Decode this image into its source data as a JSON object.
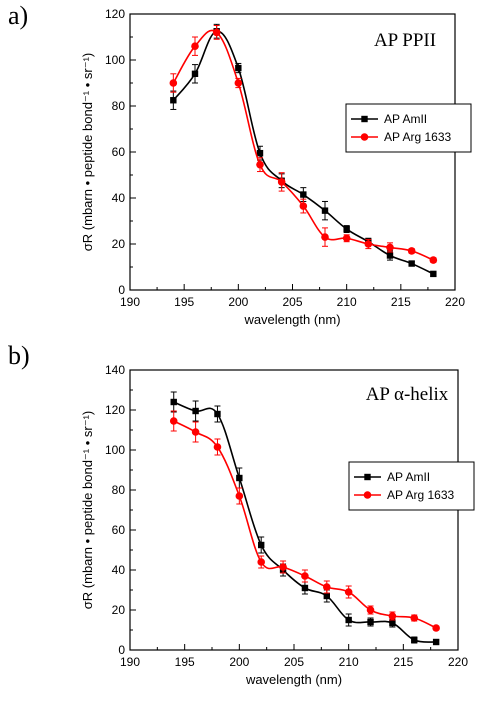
{
  "chart_data": [
    {
      "type": "line",
      "panel_label": "a)",
      "title": "AP PPII",
      "xlabel": "wavelength (nm)",
      "ylabel": "σR (mbarn • peptide bond⁻¹ • sr⁻¹)",
      "xlim": [
        190,
        220
      ],
      "ylim": [
        0,
        120
      ],
      "xticks": [
        190,
        195,
        200,
        205,
        210,
        215,
        220
      ],
      "yticks": [
        0,
        20,
        40,
        60,
        80,
        100,
        120
      ],
      "x": [
        194,
        196,
        198,
        200,
        202,
        204,
        206,
        208,
        210,
        212,
        214,
        216,
        218
      ],
      "legend_position": "center-right",
      "series": [
        {
          "name": "AP AmII",
          "color": "#000000",
          "marker": "square",
          "values": [
            82.5,
            94,
            112.5,
            96.5,
            59.5,
            47.5,
            41.5,
            34.5,
            26.5,
            21,
            15,
            11.5,
            7
          ],
          "errors": [
            4,
            4,
            3,
            2,
            3,
            3,
            3,
            4,
            1.5,
            1.5,
            2,
            1,
            1
          ]
        },
        {
          "name": "AP Arg 1633",
          "color": "#ff0000",
          "marker": "circle",
          "values": [
            90,
            106,
            112,
            90,
            54.5,
            47,
            36.5,
            23,
            22.5,
            20,
            18.5,
            17,
            13
          ],
          "errors": [
            4,
            4,
            3,
            2,
            3,
            4,
            3,
            4,
            1.5,
            2,
            2,
            1,
            1
          ]
        }
      ]
    },
    {
      "type": "line",
      "panel_label": "b)",
      "title": "AP α-helix",
      "xlabel": "wavelength (nm)",
      "ylabel": "σR (mbarn • peptide bond⁻¹ • sr⁻¹)",
      "xlim": [
        190,
        220
      ],
      "ylim": [
        0,
        140
      ],
      "xticks": [
        190,
        195,
        200,
        205,
        210,
        215,
        220
      ],
      "yticks": [
        0,
        20,
        40,
        60,
        80,
        100,
        120,
        140
      ],
      "x": [
        194,
        196,
        198,
        200,
        202,
        204,
        206,
        208,
        210,
        212,
        214,
        216,
        218
      ],
      "legend_position": "center-right",
      "series": [
        {
          "name": "AP AmII",
          "color": "#000000",
          "marker": "square",
          "values": [
            124,
            119.5,
            118,
            86,
            52.5,
            40,
            31,
            27,
            15,
            14,
            13.5,
            5,
            4
          ],
          "errors": [
            5,
            5,
            4,
            5,
            4,
            3,
            3,
            3,
            3,
            2,
            2,
            1.5,
            1
          ]
        },
        {
          "name": "AP Arg 1633",
          "color": "#ff0000",
          "marker": "circle",
          "values": [
            114.5,
            109,
            101.5,
            77,
            44,
            41.5,
            37,
            31.5,
            29,
            20,
            17,
            16,
            11
          ],
          "errors": [
            5,
            5,
            4,
            4,
            3,
            3,
            3,
            3,
            3,
            2,
            2,
            1.5,
            1
          ]
        }
      ]
    }
  ]
}
